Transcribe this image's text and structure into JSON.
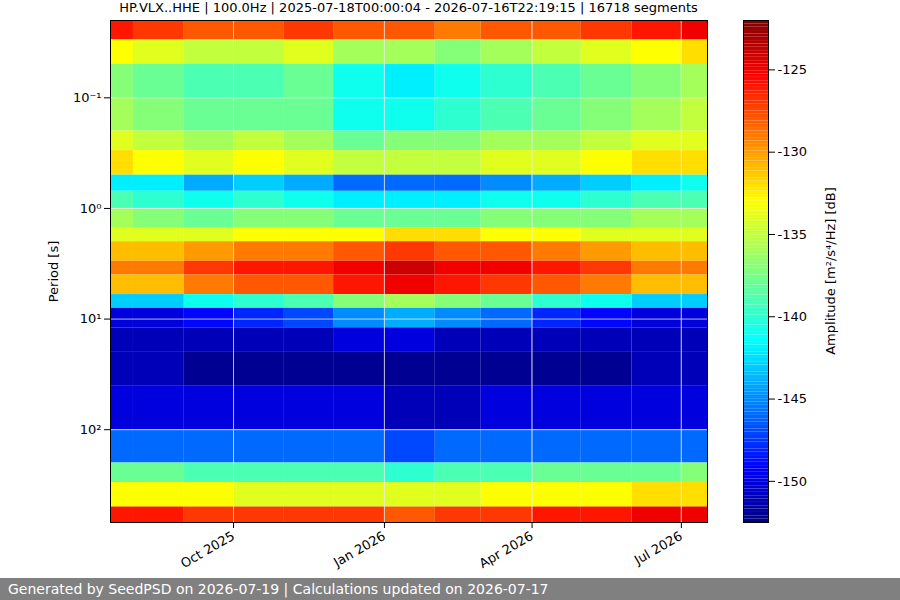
{
  "chart_data": {
    "type": "heatmap",
    "title": "HP.VLX..HHE | 100.0Hz | 2025-07-18T00:00:04 - 2026-07-16T22:19:15 | 16718 segments",
    "caption": "Generated by SeedPSD on 2026-07-19 | Calculations updated on 2026-07-17",
    "y_label": "Period [s]",
    "x": [
      "2025-07",
      "2025-08",
      "2025-09",
      "2025-10",
      "2025-11",
      "2025-12",
      "2026-01",
      "2026-02",
      "2026-03",
      "2026-04",
      "2026-05",
      "2026-06",
      "2026-07"
    ],
    "y_bins": [
      0.02,
      0.03,
      0.05,
      0.1,
      0.2,
      0.3,
      0.5,
      0.7,
      1,
      1.5,
      2,
      3,
      4,
      6,
      8,
      12,
      20,
      40,
      100,
      200,
      300,
      500,
      690
    ],
    "values": [
      [
        -126,
        -127,
        -128,
        -128,
        -127,
        -128,
        -128,
        -129,
        -128,
        -128,
        -127,
        -126,
        -125
      ],
      [
        -133,
        -134,
        -135,
        -135,
        -134,
        -136,
        -136,
        -137,
        -136,
        -135,
        -134,
        -133,
        -132
      ],
      [
        -137,
        -138,
        -139,
        -139,
        -138,
        -141,
        -142,
        -141,
        -140,
        -139,
        -138,
        -137,
        -136
      ],
      [
        -136,
        -137,
        -138,
        -138,
        -138,
        -141,
        -141,
        -140,
        -139,
        -138,
        -137,
        -136,
        -135
      ],
      [
        -134,
        -135,
        -136,
        -135,
        -136,
        -138,
        -137,
        -137,
        -136,
        -136,
        -135,
        -134,
        -134
      ],
      [
        -132,
        -133,
        -134,
        -133,
        -134,
        -135,
        -135,
        -135,
        -134,
        -134,
        -133,
        -132,
        -132
      ],
      [
        -142,
        -142,
        -144,
        -143,
        -144,
        -146,
        -146,
        -146,
        -145,
        -144,
        -143,
        -142,
        -141
      ],
      [
        -139,
        -140,
        -141,
        -140,
        -141,
        -142,
        -142,
        -142,
        -141,
        -141,
        -140,
        -139,
        -139
      ],
      [
        -136,
        -137,
        -138,
        -137,
        -137,
        -138,
        -138,
        -138,
        -137,
        -137,
        -137,
        -136,
        -136
      ],
      [
        -134,
        -134,
        -134,
        -133,
        -133,
        -133,
        -132,
        -132,
        -133,
        -133,
        -134,
        -134,
        -134
      ],
      [
        -131,
        -131,
        -130,
        -129,
        -129,
        -128,
        -127,
        -128,
        -128,
        -129,
        -130,
        -131,
        -131
      ],
      [
        -129,
        -129,
        -127,
        -126,
        -126,
        -125,
        -124,
        -125,
        -125,
        -126,
        -127,
        -129,
        -129
      ],
      [
        -131,
        -131,
        -129,
        -128,
        -128,
        -126,
        -125,
        -126,
        -127,
        -128,
        -129,
        -131,
        -131
      ],
      [
        -143,
        -143,
        -141,
        -140,
        -139,
        -137,
        -136,
        -137,
        -138,
        -140,
        -141,
        -143,
        -143
      ],
      [
        -150,
        -150,
        -149,
        -148,
        -147,
        -145,
        -144,
        -145,
        -146,
        -148,
        -149,
        -150,
        -150
      ],
      [
        -151,
        -151,
        -151,
        -151,
        -151,
        -150,
        -150,
        -151,
        -151,
        -151,
        -151,
        -151,
        -151
      ],
      [
        -151,
        -151,
        -152,
        -152,
        -152,
        -152,
        -152,
        -152,
        -152,
        -152,
        -152,
        -151,
        -151
      ],
      [
        -150,
        -150,
        -150,
        -150,
        -150,
        -150,
        -151,
        -151,
        -150,
        -150,
        -150,
        -150,
        -150
      ],
      [
        -146,
        -146,
        -146,
        -146,
        -146,
        -146,
        -147,
        -146,
        -146,
        -146,
        -146,
        -146,
        -146
      ],
      [
        -138,
        -138,
        -139,
        -139,
        -139,
        -139,
        -140,
        -139,
        -139,
        -138,
        -138,
        -138,
        -137
      ],
      [
        -133,
        -133,
        -133,
        -134,
        -134,
        -134,
        -134,
        -134,
        -133,
        -133,
        -133,
        -132,
        -132
      ],
      [
        -126,
        -126,
        -127,
        -127,
        -127,
        -127,
        -128,
        -127,
        -127,
        -126,
        -126,
        -125,
        -125
      ]
    ],
    "xlim": [
      "2025-07-18T00:00:04",
      "2026-07-16T22:19:15"
    ],
    "xticks": [
      {
        "value": "2025-10",
        "label": "Oct 2025"
      },
      {
        "value": "2026-01",
        "label": "Jan 2026"
      },
      {
        "value": "2026-04",
        "label": "Apr 2026"
      },
      {
        "value": "2026-07",
        "label": "Jul 2026"
      }
    ],
    "ylim": [
      0.02,
      690
    ],
    "yticks": [
      {
        "value": 0.1,
        "label": "10⁻¹"
      },
      {
        "value": 1,
        "label": "10⁰"
      },
      {
        "value": 10,
        "label": "10¹"
      },
      {
        "value": 100,
        "label": "10²"
      }
    ],
    "log": "y",
    "grid": true,
    "colorbar": {
      "label": "Amplitude [m²/s⁴/Hz] [dB]",
      "range": [
        -152.5,
        -122
      ],
      "ticks": [
        -150,
        -145,
        -140,
        -135,
        -130,
        -125
      ]
    }
  }
}
